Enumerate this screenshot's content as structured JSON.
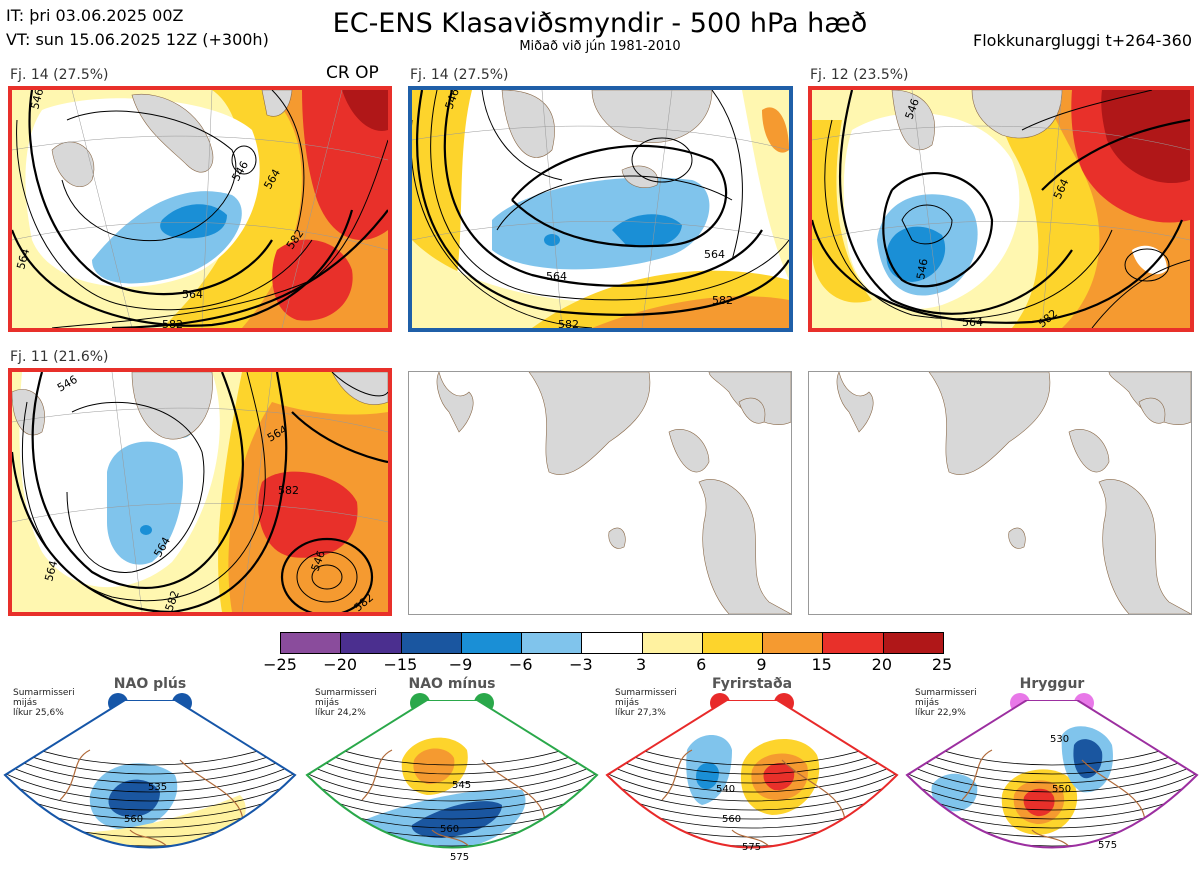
{
  "header": {
    "init_time": "IT: þri 03.06.2025 00Z",
    "valid_time": "VT: sun 15.06.2025 12Z  (+300h)",
    "title": "EC-ENS Klasaviðsmyndir - 500 hPa hæð",
    "subtitle": "Miðað við jún 1981-2010",
    "cluster_window": "Flokkunargluggi t+264-360"
  },
  "clusters": [
    {
      "label": "Fj. 14 (27.5%)",
      "badge": "CR OP",
      "border_color": "#e8302a"
    },
    {
      "label": "Fj. 14 (27.5%)",
      "badge": "",
      "border_color": "#1f5fa8"
    },
    {
      "label": "Fj. 12 (23.5%)",
      "badge": "",
      "border_color": "#e8302a"
    },
    {
      "label": "Fj. 11 (21.6%)",
      "badge": "",
      "border_color": "#e8302a"
    }
  ],
  "contour_labels": {
    "c1": [
      "546",
      "564",
      "582",
      "564",
      "582",
      "546",
      "564"
    ],
    "c2": [
      "546",
      "564",
      "564",
      "582",
      "582"
    ],
    "c3": [
      "546",
      "564",
      "546",
      "564",
      "582"
    ],
    "c4": [
      "546",
      "564",
      "582",
      "564",
      "582",
      "546",
      "564",
      "582"
    ]
  },
  "colorbar": {
    "ticks": [
      "−25",
      "−20",
      "−15",
      "−9",
      "−6",
      "−3",
      "3",
      "6",
      "9",
      "15",
      "20",
      "25"
    ],
    "colors": [
      "#8a4c9c",
      "#4b2f8f",
      "#1a56a0",
      "#1a8fd6",
      "#80c4ec",
      "#ffffff",
      "#fff2a0",
      "#fdd42c",
      "#f59a30",
      "#e8302a",
      "#b01718"
    ]
  },
  "regimes": [
    {
      "title": "NAO plús",
      "note": "Sumarmisseri\nmijás\nlíkur 25,6%",
      "dot_color": "#1656a8",
      "frame_color": "#1656a8",
      "labels": [
        "535",
        "560"
      ]
    },
    {
      "title": "NAO mínus",
      "note": "Sumarmisseri\nmijás\nlíkur 24,2%",
      "dot_color": "#2aa84a",
      "frame_color": "#2aa84a",
      "labels": [
        "545",
        "560",
        "575"
      ]
    },
    {
      "title": "Fyrirstaða",
      "note": "Sumarmisseri\nmijás\nlíkur 27,3%",
      "dot_color": "#e82a2a",
      "frame_color": "#e82a2a",
      "labels": [
        "540",
        "560",
        "575"
      ]
    },
    {
      "title": "Hryggur",
      "note": "Sumarmisseri\nmijás\nlíkur 22,9%",
      "dot_color": "#e878e8",
      "frame_color": "#9c2fa0",
      "labels": [
        "530",
        "550",
        "575"
      ]
    }
  ]
}
